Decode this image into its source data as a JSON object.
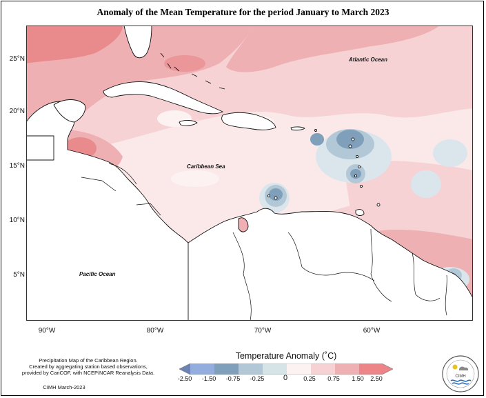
{
  "title": "Anomaly of the Mean Temperature for the period January to March 2023",
  "map": {
    "labels": {
      "atlantic": "Atlantic Ocean",
      "caribbean": "Caribbean Sea",
      "pacific": "Pacific Ocean"
    },
    "latitude_ticks": [
      "25°N",
      "20°N",
      "15°N",
      "10°N",
      "5°N"
    ],
    "longitude_ticks": [
      "90°W",
      "80°W",
      "70°W",
      "60°W"
    ],
    "colors": {
      "land": "#ffffff",
      "coast": "#111111",
      "neutral": "#fbe9ea",
      "warm_0_25_0_75": "#f6d2d4",
      "warm_0_75_1_50": "#eeb0b2",
      "warm_1_50_2_50": "#e98b8d",
      "cool_0_0_25": "#dbe6ec",
      "cool_0_25_0_75": "#b2c8d6",
      "cool_0_75_1_50": "#7f9fbb"
    }
  },
  "legend": {
    "title": "Temperature Anomaly (˚C)",
    "ticks": [
      "-2.50",
      "-1.50",
      "-0.75",
      "-0.25",
      "0",
      "0.25",
      "0.75",
      "1.50",
      "2.50"
    ],
    "bins": [
      "#6c84b3",
      "#93aede",
      "#7f9fbb",
      "#b2c8d6",
      "#d6e4e8",
      "#fdf2f2",
      "#f6d2d4",
      "#eeb0b2",
      "#ed8588"
    ]
  },
  "footer": {
    "line1": "Precipitation Map of the Caribbean Region.",
    "line2": "Created by aggregating station based observations,",
    "line3": "provided by CariCOF, with NCEP/NCAR Reanalysis Data.",
    "credit": "CIMH March-2023"
  },
  "logo": {
    "text": "CIMH"
  }
}
